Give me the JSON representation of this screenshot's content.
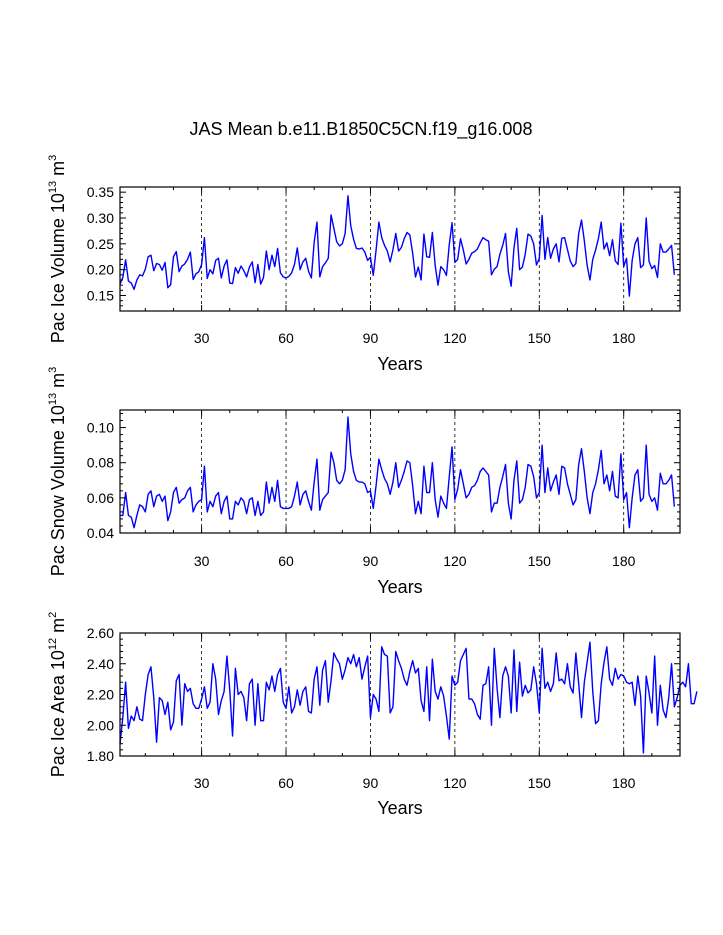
{
  "title": "JAS Mean b.e11.B1850C5CN.f19_g16.008",
  "colors": {
    "series": "#0000ff",
    "axis": "#000000",
    "grid": "#000000"
  },
  "chart_data": [
    {
      "type": "line",
      "name": "ice-volume",
      "ylabel": {
        "prefix": "Pac Ice Volume 10",
        "exp": "13",
        "unit": " m",
        "unit_exp": "3"
      },
      "xlabel": "Years",
      "xlim": [
        1,
        200
      ],
      "ylim": [
        0.12,
        0.36
      ],
      "yticks": [
        0.15,
        0.2,
        0.25,
        0.3,
        0.35
      ],
      "ytick_labels": [
        "0.15",
        "0.20",
        "0.25",
        "0.30",
        "0.35"
      ],
      "xticks": [
        30,
        60,
        90,
        120,
        150,
        180
      ],
      "xtick_labels": [
        "30",
        "60",
        "90",
        "120",
        "150",
        "180"
      ],
      "grid_x": [
        30,
        60,
        90,
        120,
        150,
        180
      ],
      "x_start": 1,
      "values": [
        0.172,
        0.185,
        0.219,
        0.178,
        0.174,
        0.162,
        0.18,
        0.19,
        0.188,
        0.201,
        0.225,
        0.228,
        0.198,
        0.212,
        0.21,
        0.199,
        0.214,
        0.165,
        0.171,
        0.225,
        0.235,
        0.196,
        0.207,
        0.211,
        0.22,
        0.234,
        0.181,
        0.192,
        0.196,
        0.21,
        0.262,
        0.183,
        0.2,
        0.192,
        0.218,
        0.222,
        0.184,
        0.207,
        0.219,
        0.174,
        0.173,
        0.204,
        0.193,
        0.207,
        0.198,
        0.186,
        0.205,
        0.215,
        0.175,
        0.21,
        0.172,
        0.185,
        0.236,
        0.2,
        0.228,
        0.206,
        0.241,
        0.194,
        0.186,
        0.184,
        0.187,
        0.194,
        0.21,
        0.242,
        0.2,
        0.215,
        0.222,
        0.197,
        0.184,
        0.253,
        0.292,
        0.186,
        0.206,
        0.213,
        0.222,
        0.306,
        0.28,
        0.254,
        0.246,
        0.25,
        0.27,
        0.343,
        0.285,
        0.259,
        0.241,
        0.24,
        0.242,
        0.234,
        0.218,
        0.224,
        0.189,
        0.238,
        0.292,
        0.262,
        0.247,
        0.236,
        0.215,
        0.239,
        0.27,
        0.236,
        0.243,
        0.26,
        0.272,
        0.267,
        0.232,
        0.186,
        0.205,
        0.18,
        0.269,
        0.225,
        0.224,
        0.272,
        0.208,
        0.17,
        0.206,
        0.2,
        0.189,
        0.248,
        0.291,
        0.214,
        0.22,
        0.26,
        0.238,
        0.211,
        0.22,
        0.232,
        0.235,
        0.24,
        0.252,
        0.262,
        0.258,
        0.255,
        0.19,
        0.201,
        0.206,
        0.23,
        0.247,
        0.27,
        0.196,
        0.168,
        0.242,
        0.28,
        0.2,
        0.205,
        0.23,
        0.269,
        0.265,
        0.25,
        0.209,
        0.222,
        0.305,
        0.22,
        0.262,
        0.222,
        0.24,
        0.25,
        0.215,
        0.261,
        0.262,
        0.239,
        0.217,
        0.206,
        0.212,
        0.27,
        0.296,
        0.256,
        0.208,
        0.18,
        0.22,
        0.238,
        0.26,
        0.292,
        0.24,
        0.252,
        0.227,
        0.258,
        0.217,
        0.21,
        0.29,
        0.206,
        0.222,
        0.149,
        0.218,
        0.25,
        0.262,
        0.204,
        0.209,
        0.3,
        0.216,
        0.202,
        0.208,
        0.185,
        0.25,
        0.234,
        0.234,
        0.24,
        0.247,
        0.19
      ],
      "labels": {
        "prefix": "Pac Ice Volume 10",
        "exp": "13",
        "unit": " m",
        "unit_exp": "3"
      }
    },
    {
      "type": "line",
      "name": "snow-volume",
      "ylabel": {
        "prefix": "Pac Snow Volume 10",
        "exp": "13",
        "unit": " m",
        "unit_exp": "3"
      },
      "xlabel": "Years",
      "xlim": [
        1,
        200
      ],
      "ylim": [
        0.04,
        0.11
      ],
      "yticks": [
        0.04,
        0.06,
        0.08,
        0.1
      ],
      "ytick_labels": [
        "0.04",
        "0.06",
        "0.08",
        "0.10"
      ],
      "xticks": [
        30,
        60,
        90,
        120,
        150,
        180
      ],
      "xtick_labels": [
        "30",
        "60",
        "90",
        "120",
        "150",
        "180"
      ],
      "grid_x": [
        30,
        60,
        90,
        120,
        150,
        180
      ],
      "x_start": 1,
      "values": [
        0.05,
        0.05,
        0.063,
        0.05,
        0.049,
        0.043,
        0.05,
        0.056,
        0.055,
        0.052,
        0.062,
        0.064,
        0.055,
        0.061,
        0.062,
        0.058,
        0.061,
        0.047,
        0.052,
        0.063,
        0.066,
        0.057,
        0.059,
        0.06,
        0.064,
        0.066,
        0.052,
        0.056,
        0.058,
        0.059,
        0.078,
        0.052,
        0.058,
        0.055,
        0.061,
        0.063,
        0.051,
        0.058,
        0.061,
        0.048,
        0.048,
        0.058,
        0.056,
        0.06,
        0.058,
        0.051,
        0.059,
        0.06,
        0.05,
        0.058,
        0.05,
        0.052,
        0.069,
        0.057,
        0.066,
        0.058,
        0.07,
        0.055,
        0.054,
        0.054,
        0.054,
        0.055,
        0.061,
        0.069,
        0.056,
        0.062,
        0.064,
        0.058,
        0.053,
        0.069,
        0.082,
        0.053,
        0.059,
        0.061,
        0.063,
        0.086,
        0.08,
        0.07,
        0.068,
        0.07,
        0.076,
        0.106,
        0.085,
        0.075,
        0.07,
        0.069,
        0.069,
        0.068,
        0.063,
        0.064,
        0.054,
        0.067,
        0.082,
        0.076,
        0.071,
        0.068,
        0.062,
        0.069,
        0.08,
        0.066,
        0.07,
        0.075,
        0.081,
        0.08,
        0.067,
        0.051,
        0.058,
        0.051,
        0.078,
        0.063,
        0.063,
        0.08,
        0.059,
        0.049,
        0.061,
        0.057,
        0.054,
        0.072,
        0.089,
        0.059,
        0.065,
        0.076,
        0.068,
        0.06,
        0.062,
        0.066,
        0.067,
        0.07,
        0.075,
        0.077,
        0.075,
        0.073,
        0.052,
        0.057,
        0.057,
        0.066,
        0.072,
        0.079,
        0.057,
        0.048,
        0.07,
        0.081,
        0.057,
        0.059,
        0.066,
        0.079,
        0.078,
        0.072,
        0.06,
        0.063,
        0.09,
        0.063,
        0.077,
        0.064,
        0.069,
        0.073,
        0.062,
        0.078,
        0.077,
        0.068,
        0.062,
        0.056,
        0.059,
        0.079,
        0.088,
        0.075,
        0.06,
        0.051,
        0.063,
        0.068,
        0.076,
        0.087,
        0.068,
        0.073,
        0.064,
        0.075,
        0.061,
        0.06,
        0.085,
        0.059,
        0.063,
        0.043,
        0.06,
        0.073,
        0.076,
        0.058,
        0.06,
        0.09,
        0.062,
        0.058,
        0.06,
        0.053,
        0.074,
        0.068,
        0.068,
        0.07,
        0.073,
        0.055
      ],
      "labels": {
        "prefix": "Pac Snow Volume 10",
        "exp": "13",
        "unit": " m",
        "unit_exp": "3"
      }
    },
    {
      "type": "line",
      "name": "ice-area",
      "ylabel": {
        "prefix": "Pac Ice Area 10",
        "exp": "12",
        "unit": " m",
        "unit_exp": "2"
      },
      "xlabel": "Years",
      "xlim": [
        1,
        200
      ],
      "ylim": [
        1.8,
        2.6
      ],
      "yticks": [
        1.8,
        2.0,
        2.2,
        2.4,
        2.6
      ],
      "ytick_labels": [
        "1.80",
        "2.00",
        "2.20",
        "2.40",
        "2.60"
      ],
      "xticks": [
        30,
        60,
        90,
        120,
        150,
        180
      ],
      "xtick_labels": [
        "30",
        "60",
        "90",
        "120",
        "150",
        "180"
      ],
      "grid_x": [
        30,
        60,
        90,
        120,
        150,
        180
      ],
      "x_start": 1,
      "values": [
        1.88,
        2.05,
        2.28,
        1.98,
        2.06,
        2.03,
        2.12,
        2.04,
        2.03,
        2.2,
        2.33,
        2.38,
        2.18,
        1.89,
        2.18,
        2.16,
        2.07,
        2.15,
        1.97,
        2.02,
        2.29,
        2.33,
        2.0,
        2.27,
        2.22,
        2.24,
        2.14,
        2.11,
        2.11,
        2.17,
        2.25,
        2.11,
        2.15,
        2.4,
        2.3,
        2.07,
        2.16,
        2.22,
        2.45,
        2.23,
        1.93,
        2.37,
        2.2,
        2.22,
        2.18,
        2.03,
        2.27,
        2.3,
        2.0,
        2.27,
        2.03,
        2.03,
        2.28,
        2.23,
        2.32,
        2.22,
        2.33,
        2.37,
        2.15,
        2.11,
        2.25,
        2.08,
        2.12,
        2.23,
        2.13,
        2.22,
        2.25,
        2.09,
        2.08,
        2.3,
        2.38,
        2.13,
        2.36,
        2.42,
        2.15,
        2.29,
        2.47,
        2.43,
        2.4,
        2.3,
        2.36,
        2.44,
        2.4,
        2.46,
        2.38,
        2.44,
        2.3,
        2.38,
        2.45,
        2.05,
        2.2,
        2.17,
        2.09,
        2.51,
        2.46,
        2.45,
        2.08,
        2.12,
        2.48,
        2.42,
        2.37,
        2.3,
        2.26,
        2.35,
        2.42,
        2.34,
        2.37,
        2.16,
        2.09,
        2.38,
        2.03,
        2.43,
        2.22,
        2.17,
        2.25,
        2.19,
        2.06,
        1.91,
        2.32,
        2.26,
        2.28,
        2.42,
        2.46,
        2.5,
        2.17,
        2.17,
        2.14,
        2.07,
        2.04,
        2.26,
        2.27,
        2.38,
        2.0,
        2.5,
        2.24,
        2.05,
        2.32,
        2.38,
        2.32,
        2.08,
        2.49,
        2.09,
        2.41,
        2.19,
        2.26,
        2.21,
        2.23,
        2.38,
        2.27,
        2.08,
        2.5,
        2.24,
        2.28,
        2.22,
        2.27,
        2.47,
        2.29,
        2.3,
        2.27,
        2.4,
        2.25,
        2.21,
        2.47,
        2.27,
        2.05,
        2.28,
        2.41,
        2.54,
        2.22,
        2.01,
        2.03,
        2.27,
        2.41,
        2.51,
        2.3,
        2.26,
        2.37,
        2.3,
        2.33,
        2.32,
        2.28,
        2.27,
        2.28,
        2.13,
        2.32,
        2.19,
        1.82,
        2.32,
        2.21,
        2.08,
        2.45,
        2.0,
        2.26,
        2.1,
        2.05,
        2.18,
        2.4,
        2.12,
        2.18,
        2.26,
        2.28,
        2.25,
        2.4,
        2.14,
        2.14,
        2.22
      ],
      "labels": {
        "prefix": "Pac Ice Area 10",
        "exp": "12",
        "unit": " m",
        "unit_exp": "2"
      }
    }
  ]
}
